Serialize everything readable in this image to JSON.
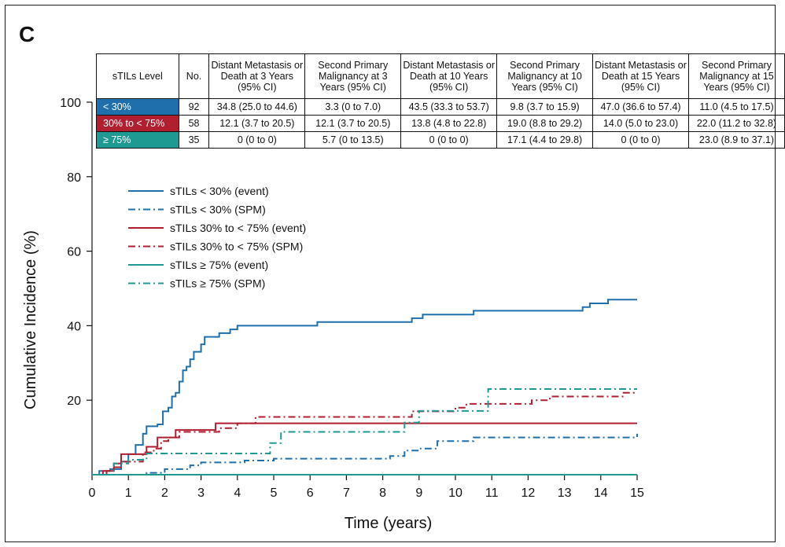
{
  "panel_label": "C",
  "colors": {
    "low": "#1f6fad",
    "mid": "#b01e2f",
    "high": "#1f9a93"
  },
  "table": {
    "headers": [
      "sTILs Level",
      "No.",
      "Distant Metastasis or Death at 3 Years (95% CI)",
      "Second Primary Malignancy at 3 Years (95% CI)",
      "Distant Metastasis or Death at 10 Years (95% CI)",
      "Second Primary Malignancy at 10 Years (95% CI)",
      "Distant Metastasis or Death at 15 Years (95% CI)",
      "Second Primary Malignancy at 15 Years (95% CI)"
    ],
    "rows": [
      {
        "level": "< 30%",
        "color": "#1f6fad",
        "cells": [
          "92",
          "34.8 (25.0 to 44.6)",
          "3.3 (0 to 7.0)",
          "43.5 (33.3 to 53.7)",
          "9.8 (3.7 to 15.9)",
          "47.0 (36.6 to 57.4)",
          "11.0 (4.5 to 17.5)"
        ]
      },
      {
        "level": "30% to < 75%",
        "color": "#b01e2f",
        "cells": [
          "58",
          "12.1 (3.7 to 20.5)",
          "12.1 (3.7 to 20.5)",
          "13.8 (4.8 to 22.8)",
          "19.0 (8.8 to 29.2)",
          "14.0 (5.0 to 23.0)",
          "22.0 (11.2 to 32.8)"
        ]
      },
      {
        "level": "≥ 75%",
        "color": "#1f9a93",
        "cells": [
          "35",
          "0 (0 to 0)",
          "5.7 (0 to 13.5)",
          "0 (0 to 0)",
          "17.1 (4.4 to 29.8)",
          "0 (0 to 0)",
          "23.0 (8.9 to 37.1)"
        ]
      }
    ]
  },
  "chart_data": {
    "type": "line",
    "xlabel": "Time (years)",
    "ylabel": "Cumulative Incidence (%)",
    "xlim": [
      0,
      15
    ],
    "ylim": [
      0,
      100
    ],
    "xticks": [
      0,
      1,
      2,
      3,
      4,
      5,
      6,
      7,
      8,
      9,
      10,
      11,
      12,
      13,
      14,
      15
    ],
    "yticks": [
      20,
      40,
      60,
      80,
      100
    ],
    "legend_position": "upper-left",
    "series": [
      {
        "name": "sTILs < 30% (event)",
        "color": "#1f6fad",
        "dash": "solid",
        "points": [
          [
            0,
            0
          ],
          [
            0.2,
            1
          ],
          [
            0.5,
            1.5
          ],
          [
            0.8,
            3.5
          ],
          [
            1.0,
            5.5
          ],
          [
            1.2,
            8
          ],
          [
            1.4,
            11
          ],
          [
            1.5,
            13
          ],
          [
            1.8,
            13.5
          ],
          [
            1.95,
            17
          ],
          [
            2.1,
            18
          ],
          [
            2.2,
            21
          ],
          [
            2.3,
            22
          ],
          [
            2.4,
            25
          ],
          [
            2.5,
            28
          ],
          [
            2.6,
            29
          ],
          [
            2.7,
            31
          ],
          [
            2.8,
            33
          ],
          [
            3.0,
            35
          ],
          [
            3.1,
            37
          ],
          [
            3.5,
            38
          ],
          [
            3.8,
            39
          ],
          [
            4.0,
            40
          ],
          [
            6.2,
            41
          ],
          [
            8.8,
            42
          ],
          [
            9.1,
            43
          ],
          [
            10.5,
            44
          ],
          [
            13.5,
            45
          ],
          [
            13.7,
            46
          ],
          [
            14.2,
            47
          ],
          [
            15,
            47
          ]
        ]
      },
      {
        "name": "sTILs < 30% (SPM)",
        "color": "#1f6fad",
        "dash": "dashdot",
        "points": [
          [
            0,
            0
          ],
          [
            1.5,
            0.5
          ],
          [
            2.0,
            1.5
          ],
          [
            2.7,
            2.5
          ],
          [
            3.0,
            3.3
          ],
          [
            4.2,
            3.8
          ],
          [
            5.0,
            4.3
          ],
          [
            8.2,
            5
          ],
          [
            8.6,
            6.5
          ],
          [
            9.0,
            7
          ],
          [
            9.5,
            9
          ],
          [
            10.5,
            10
          ],
          [
            14.9,
            10
          ],
          [
            15,
            11
          ]
        ]
      },
      {
        "name": "sTILs 30% to < 75% (event)",
        "color": "#b01e2f",
        "dash": "solid",
        "points": [
          [
            0,
            0
          ],
          [
            0.3,
            1
          ],
          [
            0.6,
            3
          ],
          [
            0.8,
            5.5
          ],
          [
            1.5,
            7.5
          ],
          [
            1.8,
            10
          ],
          [
            2.3,
            12
          ],
          [
            3.4,
            13.8
          ],
          [
            15,
            13.8
          ]
        ]
      },
      {
        "name": "sTILs 30% to < 75% (SPM)",
        "color": "#b01e2f",
        "dash": "dashdot",
        "points": [
          [
            0,
            0
          ],
          [
            0.4,
            1
          ],
          [
            0.6,
            2
          ],
          [
            0.8,
            3.5
          ],
          [
            1.4,
            6
          ],
          [
            1.7,
            7
          ],
          [
            1.9,
            9
          ],
          [
            2.1,
            10
          ],
          [
            2.4,
            11.5
          ],
          [
            3.5,
            12.5
          ],
          [
            4.0,
            13.8
          ],
          [
            4.5,
            15.5
          ],
          [
            8.5,
            15.5
          ],
          [
            8.8,
            17
          ],
          [
            10.0,
            18
          ],
          [
            10.3,
            19
          ],
          [
            12.1,
            20
          ],
          [
            12.6,
            21
          ],
          [
            14.6,
            22
          ],
          [
            15,
            22
          ]
        ]
      },
      {
        "name": "sTILs ≥ 75% (event)",
        "color": "#1f9a93",
        "dash": "solid",
        "points": [
          [
            0,
            0
          ],
          [
            15,
            0
          ]
        ]
      },
      {
        "name": "sTILs ≥ 75% (SPM)",
        "color": "#1f9a93",
        "dash": "dashdot",
        "points": [
          [
            0,
            0
          ],
          [
            0.6,
            3
          ],
          [
            1.0,
            4
          ],
          [
            1.5,
            5.7
          ],
          [
            4.0,
            5.7
          ],
          [
            4.9,
            8.5
          ],
          [
            5.2,
            11.5
          ],
          [
            8.3,
            11.5
          ],
          [
            8.6,
            14
          ],
          [
            9.0,
            17.1
          ],
          [
            10.6,
            17.1
          ],
          [
            10.9,
            23
          ],
          [
            15,
            23
          ]
        ]
      }
    ]
  }
}
